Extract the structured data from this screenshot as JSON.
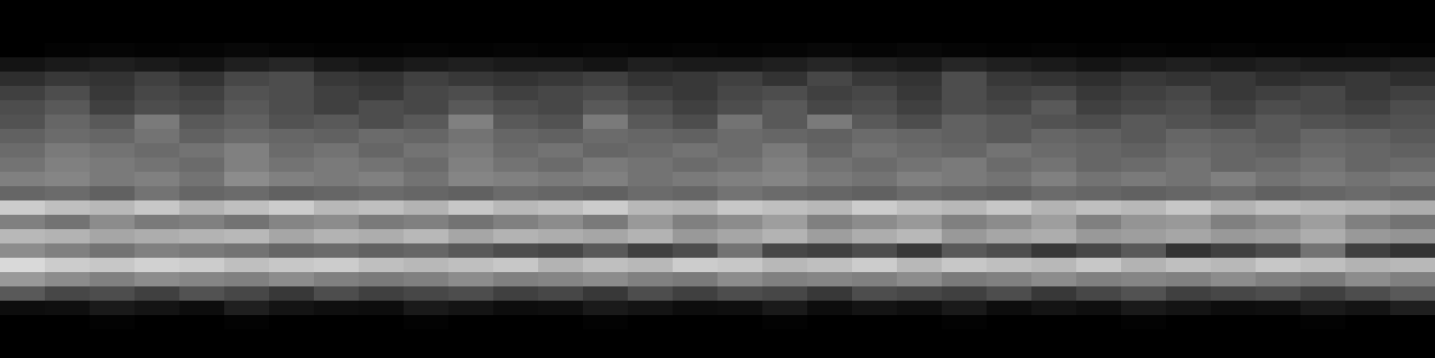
{
  "chart_data": {
    "type": "heatmap",
    "tick_labels": false,
    "zlim": [
      0,
      1
    ],
    "z": [
      [
        0,
        0,
        0,
        0,
        0,
        0,
        0,
        0,
        0,
        0,
        0,
        0,
        0,
        0,
        0,
        0,
        0,
        0,
        0,
        0,
        0,
        0,
        0,
        0,
        0,
        0,
        0,
        0,
        0,
        0,
        0,
        0
      ],
      [
        0,
        0,
        0,
        0,
        0,
        0,
        0,
        0,
        0,
        0,
        0,
        0,
        0,
        0,
        0,
        0,
        0,
        0,
        0,
        0,
        0,
        0,
        0,
        0,
        0,
        0,
        0,
        0,
        0,
        0,
        0,
        0
      ],
      [
        0,
        0,
        0,
        0,
        0,
        0,
        0,
        0,
        0,
        0,
        0,
        0,
        0,
        0,
        0,
        0,
        0,
        0,
        0,
        0,
        0,
        0,
        0,
        0,
        0,
        0,
        0,
        0,
        0,
        0,
        0,
        0
      ],
      [
        0,
        0.01,
        0.02,
        0.01,
        0.02,
        0.03,
        0.02,
        0.01,
        0.01,
        0.02,
        0.01,
        0.02,
        0.01,
        0.02,
        0.01,
        0.02,
        0.01,
        0.02,
        0.03,
        0.02,
        0.03,
        0.02,
        0.01,
        0.02,
        0.01,
        0.02,
        0.01,
        0.02,
        0.01,
        0.01,
        0.02,
        0.01
      ],
      [
        0.08,
        0.1,
        0.12,
        0.1,
        0.08,
        0.12,
        0.15,
        0.1,
        0.08,
        0.1,
        0.12,
        0.1,
        0.1,
        0.08,
        0.12,
        0.1,
        0.1,
        0.12,
        0.15,
        0.12,
        0.1,
        0.15,
        0.12,
        0.1,
        0.08,
        0.1,
        0.12,
        0.1,
        0.12,
        0.1,
        0.1,
        0.12
      ],
      [
        0.18,
        0.22,
        0.2,
        0.25,
        0.2,
        0.28,
        0.3,
        0.22,
        0.2,
        0.25,
        0.22,
        0.2,
        0.22,
        0.25,
        0.2,
        0.22,
        0.25,
        0.2,
        0.28,
        0.22,
        0.2,
        0.3,
        0.22,
        0.2,
        0.18,
        0.22,
        0.2,
        0.22,
        0.18,
        0.2,
        0.22,
        0.18
      ],
      [
        0.25,
        0.3,
        0.22,
        0.28,
        0.25,
        0.32,
        0.3,
        0.25,
        0.22,
        0.28,
        0.3,
        0.25,
        0.28,
        0.3,
        0.25,
        0.22,
        0.28,
        0.3,
        0.25,
        0.28,
        0.22,
        0.3,
        0.25,
        0.28,
        0.22,
        0.25,
        0.28,
        0.22,
        0.25,
        0.28,
        0.22,
        0.25
      ],
      [
        0.3,
        0.35,
        0.25,
        0.3,
        0.28,
        0.35,
        0.3,
        0.25,
        0.3,
        0.28,
        0.35,
        0.3,
        0.28,
        0.35,
        0.3,
        0.25,
        0.3,
        0.35,
        0.28,
        0.3,
        0.25,
        0.3,
        0.28,
        0.35,
        0.25,
        0.28,
        0.3,
        0.25,
        0.3,
        0.28,
        0.25,
        0.3
      ],
      [
        0.32,
        0.4,
        0.35,
        0.48,
        0.35,
        0.38,
        0.32,
        0.35,
        0.3,
        0.35,
        0.5,
        0.35,
        0.32,
        0.48,
        0.35,
        0.3,
        0.45,
        0.35,
        0.48,
        0.35,
        0.3,
        0.38,
        0.35,
        0.32,
        0.3,
        0.35,
        0.32,
        0.3,
        0.35,
        0.32,
        0.3,
        0.32
      ],
      [
        0.38,
        0.42,
        0.4,
        0.45,
        0.38,
        0.42,
        0.4,
        0.38,
        0.42,
        0.4,
        0.45,
        0.4,
        0.38,
        0.42,
        0.4,
        0.38,
        0.42,
        0.4,
        0.38,
        0.42,
        0.4,
        0.38,
        0.35,
        0.4,
        0.38,
        0.35,
        0.4,
        0.38,
        0.35,
        0.4,
        0.38,
        0.35
      ],
      [
        0.42,
        0.48,
        0.45,
        0.42,
        0.45,
        0.5,
        0.42,
        0.45,
        0.4,
        0.45,
        0.48,
        0.42,
        0.45,
        0.4,
        0.42,
        0.45,
        0.42,
        0.48,
        0.4,
        0.45,
        0.42,
        0.4,
        0.45,
        0.42,
        0.4,
        0.38,
        0.42,
        0.4,
        0.38,
        0.42,
        0.4,
        0.38
      ],
      [
        0.45,
        0.5,
        0.48,
        0.45,
        0.42,
        0.5,
        0.45,
        0.48,
        0.45,
        0.42,
        0.5,
        0.45,
        0.42,
        0.48,
        0.45,
        0.42,
        0.45,
        0.5,
        0.45,
        0.42,
        0.45,
        0.48,
        0.42,
        0.45,
        0.4,
        0.42,
        0.45,
        0.4,
        0.42,
        0.45,
        0.4,
        0.42
      ],
      [
        0.5,
        0.52,
        0.48,
        0.5,
        0.45,
        0.55,
        0.5,
        0.48,
        0.5,
        0.45,
        0.52,
        0.5,
        0.48,
        0.5,
        0.45,
        0.48,
        0.5,
        0.52,
        0.48,
        0.45,
        0.5,
        0.48,
        0.45,
        0.5,
        0.45,
        0.48,
        0.45,
        0.5,
        0.45,
        0.48,
        0.45,
        0.48
      ],
      [
        0.4,
        0.42,
        0.38,
        0.45,
        0.4,
        0.42,
        0.38,
        0.4,
        0.42,
        0.4,
        0.38,
        0.42,
        0.4,
        0.38,
        0.42,
        0.4,
        0.45,
        0.42,
        0.4,
        0.38,
        0.42,
        0.4,
        0.38,
        0.42,
        0.4,
        0.38,
        0.4,
        0.42,
        0.38,
        0.4,
        0.42,
        0.4
      ],
      [
        0.8,
        0.75,
        0.72,
        0.78,
        0.7,
        0.75,
        0.8,
        0.72,
        0.75,
        0.7,
        0.78,
        0.72,
        0.75,
        0.8,
        0.72,
        0.7,
        0.78,
        0.75,
        0.72,
        0.8,
        0.75,
        0.72,
        0.78,
        0.7,
        0.75,
        0.72,
        0.78,
        0.7,
        0.75,
        0.72,
        0.7,
        0.68
      ],
      [
        0.5,
        0.45,
        0.55,
        0.48,
        0.5,
        0.45,
        0.52,
        0.55,
        0.48,
        0.5,
        0.45,
        0.5,
        0.55,
        0.48,
        0.6,
        0.5,
        0.55,
        0.62,
        0.5,
        0.55,
        0.6,
        0.5,
        0.55,
        0.62,
        0.5,
        0.58,
        0.6,
        0.5,
        0.55,
        0.62,
        0.5,
        0.45
      ],
      [
        0.72,
        0.7,
        0.65,
        0.68,
        0.7,
        0.72,
        0.65,
        0.7,
        0.68,
        0.72,
        0.65,
        0.7,
        0.68,
        0.65,
        0.7,
        0.6,
        0.65,
        0.7,
        0.62,
        0.68,
        0.72,
        0.6,
        0.65,
        0.68,
        0.6,
        0.62,
        0.65,
        0.6,
        0.62,
        0.68,
        0.6,
        0.58
      ],
      [
        0.55,
        0.5,
        0.45,
        0.5,
        0.48,
        0.45,
        0.4,
        0.42,
        0.38,
        0.4,
        0.35,
        0.3,
        0.28,
        0.35,
        0.25,
        0.3,
        0.45,
        0.28,
        0.25,
        0.3,
        0.22,
        0.35,
        0.3,
        0.22,
        0.28,
        0.35,
        0.2,
        0.25,
        0.3,
        0.45,
        0.25,
        0.2
      ],
      [
        0.85,
        0.8,
        0.78,
        0.82,
        0.8,
        0.75,
        0.78,
        0.8,
        0.75,
        0.72,
        0.75,
        0.78,
        0.7,
        0.75,
        0.72,
        0.8,
        0.78,
        0.72,
        0.75,
        0.8,
        0.72,
        0.78,
        0.75,
        0.72,
        0.78,
        0.7,
        0.75,
        0.72,
        0.78,
        0.75,
        0.7,
        0.72
      ],
      [
        0.6,
        0.55,
        0.5,
        0.55,
        0.52,
        0.5,
        0.55,
        0.5,
        0.48,
        0.5,
        0.55,
        0.5,
        0.52,
        0.55,
        0.5,
        0.48,
        0.55,
        0.5,
        0.52,
        0.5,
        0.55,
        0.48,
        0.5,
        0.55,
        0.5,
        0.52,
        0.5,
        0.55,
        0.5,
        0.48,
        0.55,
        0.5
      ],
      [
        0.35,
        0.28,
        0.3,
        0.25,
        0.32,
        0.28,
        0.22,
        0.3,
        0.25,
        0.28,
        0.3,
        0.25,
        0.28,
        0.22,
        0.3,
        0.25,
        0.3,
        0.28,
        0.22,
        0.3,
        0.28,
        0.25,
        0.3,
        0.22,
        0.28,
        0.32,
        0.25,
        0.28,
        0.3,
        0.25,
        0.3,
        0.35
      ],
      [
        0.05,
        0.06,
        0.1,
        0.08,
        0.05,
        0.12,
        0.08,
        0.06,
        0.05,
        0.1,
        0.08,
        0.05,
        0.06,
        0.1,
        0.08,
        0.05,
        0.06,
        0.1,
        0.05,
        0.08,
        0.06,
        0.1,
        0.05,
        0.08,
        0.06,
        0.1,
        0.08,
        0.05,
        0.06,
        0.1,
        0.08,
        0.12
      ],
      [
        0,
        0,
        0.01,
        0,
        0,
        0.01,
        0,
        0,
        0,
        0.01,
        0,
        0,
        0,
        0.01,
        0,
        0,
        0,
        0.01,
        0,
        0,
        0,
        0.01,
        0,
        0,
        0,
        0.01,
        0,
        0,
        0,
        0.01,
        0,
        0
      ],
      [
        0,
        0,
        0,
        0,
        0,
        0,
        0,
        0,
        0,
        0,
        0,
        0,
        0,
        0,
        0,
        0,
        0,
        0,
        0,
        0,
        0,
        0,
        0,
        0,
        0,
        0,
        0,
        0,
        0,
        0,
        0,
        0
      ],
      [
        0,
        0,
        0,
        0,
        0,
        0,
        0,
        0,
        0,
        0,
        0,
        0,
        0,
        0,
        0,
        0,
        0,
        0,
        0,
        0,
        0,
        0,
        0,
        0,
        0,
        0,
        0,
        0,
        0,
        0,
        0,
        0
      ]
    ]
  }
}
